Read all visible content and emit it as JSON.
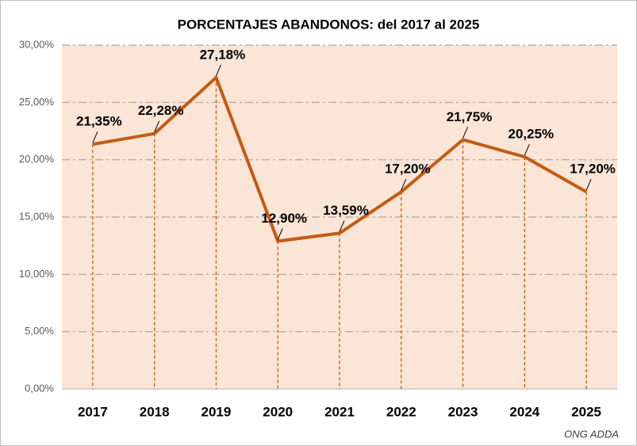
{
  "chart_data": {
    "type": "line",
    "title": "PORCENTAJES ABANDONOS: del 2017 al 2025",
    "categories": [
      "2017",
      "2018",
      "2019",
      "2020",
      "2021",
      "2022",
      "2023",
      "2024",
      "2025"
    ],
    "values": [
      21.35,
      22.28,
      27.18,
      12.9,
      13.59,
      17.2,
      21.75,
      20.25,
      17.2
    ],
    "value_labels": [
      "21,35%",
      "22,28%",
      "27,18%",
      "12,90%",
      "13,59%",
      "17,20%",
      "21,75%",
      "20,25%",
      "17,20%"
    ],
    "color": "#c55a11",
    "plot_background": "#fbe5d6",
    "ylim": [
      0,
      30
    ],
    "yticks": [
      {
        "value": 0,
        "label": "0,00%"
      },
      {
        "value": 5,
        "label": "5,00%"
      },
      {
        "value": 10,
        "label": "10,00%"
      },
      {
        "value": 15,
        "label": "15,00%"
      },
      {
        "value": 20,
        "label": "20,00%"
      },
      {
        "value": 25,
        "label": "25,00%"
      },
      {
        "value": 30,
        "label": "30,00%"
      }
    ],
    "grid": true,
    "drop_lines": true,
    "source": "ONG ADDA"
  }
}
